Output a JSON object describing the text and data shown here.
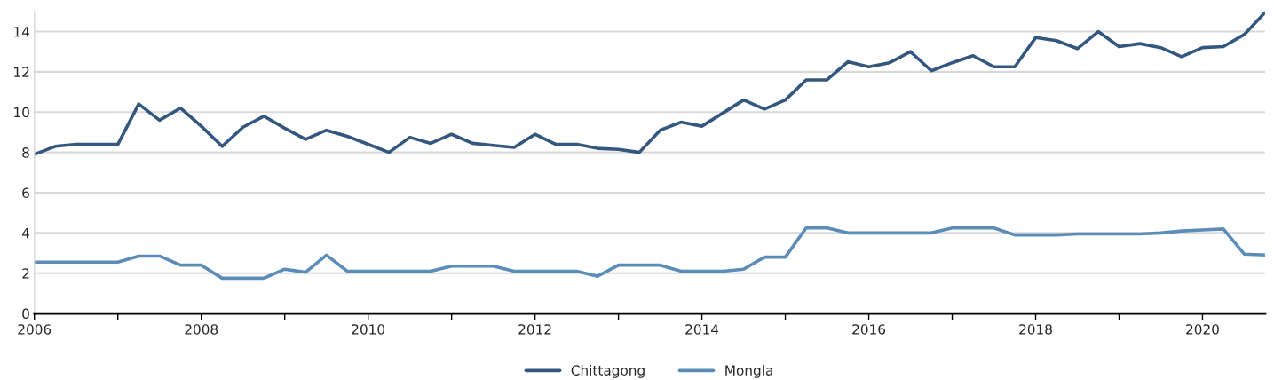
{
  "chart_data": {
    "type": "line",
    "x": [
      2006.0,
      2006.25,
      2006.5,
      2006.75,
      2007.0,
      2007.25,
      2007.5,
      2007.75,
      2008.0,
      2008.25,
      2008.5,
      2008.75,
      2009.0,
      2009.25,
      2009.5,
      2009.75,
      2010.0,
      2010.25,
      2010.5,
      2010.75,
      2011.0,
      2011.25,
      2011.5,
      2011.75,
      2012.0,
      2012.25,
      2012.5,
      2012.75,
      2013.0,
      2013.25,
      2013.5,
      2013.75,
      2014.0,
      2014.25,
      2014.5,
      2014.75,
      2015.0,
      2015.25,
      2015.5,
      2015.75,
      2016.0,
      2016.25,
      2016.5,
      2016.75,
      2017.0,
      2017.25,
      2017.5,
      2017.75,
      2018.0,
      2018.25,
      2018.5,
      2018.75,
      2019.0,
      2019.25,
      2019.5,
      2019.75,
      2020.0,
      2020.25,
      2020.5,
      2020.75
    ],
    "series": [
      {
        "name": "Chittagong",
        "color": "#34577f",
        "values": [
          7.9,
          8.3,
          8.4,
          8.4,
          8.4,
          10.4,
          9.6,
          10.2,
          9.3,
          8.3,
          9.25,
          9.8,
          9.2,
          8.65,
          9.1,
          8.8,
          8.4,
          8.0,
          8.75,
          8.45,
          8.9,
          8.45,
          8.35,
          8.25,
          8.9,
          8.4,
          8.4,
          8.2,
          8.15,
          8.0,
          9.1,
          9.5,
          9.3,
          9.95,
          10.6,
          10.15,
          10.6,
          11.6,
          11.6,
          12.5,
          12.25,
          12.45,
          13.0,
          12.05,
          12.45,
          12.8,
          12.25,
          12.25,
          13.7,
          13.55,
          13.15,
          14.0,
          13.25,
          13.4,
          13.2,
          12.75,
          13.2,
          13.25,
          13.85,
          14.95
        ]
      },
      {
        "name": "Mongla",
        "color": "#5b8db8",
        "values": [
          2.55,
          2.55,
          2.55,
          2.55,
          2.55,
          2.85,
          2.85,
          2.4,
          2.4,
          1.75,
          1.75,
          1.75,
          2.2,
          2.05,
          2.9,
          2.1,
          2.1,
          2.1,
          2.1,
          2.1,
          2.35,
          2.35,
          2.35,
          2.1,
          2.1,
          2.1,
          2.1,
          1.85,
          2.4,
          2.4,
          2.4,
          2.1,
          2.1,
          2.1,
          2.2,
          2.8,
          2.8,
          4.25,
          4.25,
          4.0,
          4.0,
          4.0,
          4.0,
          4.0,
          4.25,
          4.25,
          4.25,
          3.9,
          3.9,
          3.9,
          3.95,
          3.95,
          3.95,
          3.95,
          4.0,
          4.1,
          4.15,
          4.2,
          2.95,
          2.9
        ]
      }
    ],
    "xlim": [
      2006,
      2020.75
    ],
    "xticks": [
      2006,
      {
        "value": 2007,
        "label": null
      },
      2008,
      {
        "value": 2009,
        "label": null
      },
      2010,
      {
        "value": 2011,
        "label": null
      },
      2012,
      {
        "value": 2013,
        "label": null
      },
      2014,
      {
        "value": 2015,
        "label": null
      },
      2016,
      {
        "value": 2017,
        "label": null
      },
      2018,
      {
        "value": 2019,
        "label": null
      },
      2020
    ],
    "ylim": [
      0,
      15
    ],
    "yticks": [
      0,
      2,
      4,
      6,
      8,
      10,
      12,
      14
    ],
    "grid": "y",
    "legend": "bottom",
    "marker": "none",
    "line_style": "solid"
  }
}
